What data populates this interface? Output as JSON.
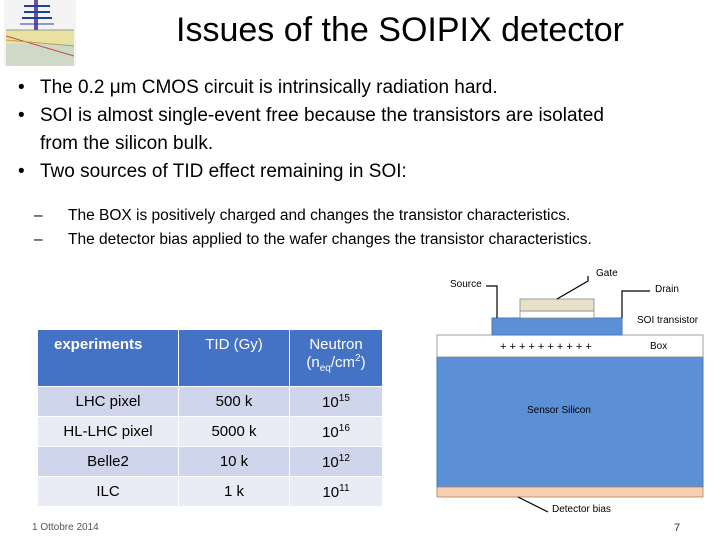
{
  "slide": {
    "title": "Issues of the SOIPIX detector",
    "bullets": [
      "The 0.2 μm CMOS circuit is intrinsically radiation hard.",
      "SOI is almost single-event free because the transistors are isolated",
      "from the silicon bulk.",
      "Two sources of TID effect remaining in SOI:"
    ],
    "bullet_marker": "•",
    "sub_marker": "–",
    "sub_bullets": [
      "The BOX is positively charged and changes the transistor characteristics.",
      "The detector bias applied to the wafer changes the transistor characteristics."
    ]
  },
  "table": {
    "headers": {
      "experiments": "experiments",
      "tid": "TID (Gy)",
      "neutron_line1": "Neutron",
      "neutron_n": "(n",
      "neutron_sub": "eq",
      "neutron_unit": "/cm",
      "neutron_sup": "2",
      "neutron_close": ")"
    },
    "rows": [
      {
        "experiment": "LHC pixel",
        "tid": "500 k",
        "base": "10",
        "exp": "15"
      },
      {
        "experiment": "HL-LHC pixel",
        "tid": "5000 k",
        "base": "10",
        "exp": "16"
      },
      {
        "experiment": "Belle2",
        "tid": "10 k",
        "base": "10",
        "exp": "12"
      },
      {
        "experiment": "ILC",
        "tid": "1 k",
        "base": "10",
        "exp": "11"
      }
    ]
  },
  "diagram": {
    "labels": {
      "gate": "Gate",
      "source": "Source",
      "drain": "Drain",
      "soi_transistor": "SOI transistor",
      "box": "Box",
      "box_charges": "+ + + + + + + + + +",
      "sensor_silicon": "Sensor Silicon",
      "detector_bias": "Detector bias"
    },
    "colors": {
      "silicon": "#5b8fd6",
      "soi_layer": "#5b8fd6",
      "gate": "#e8e0c8",
      "box": "#ffffff",
      "bias_contact": "#f7cfb0"
    }
  },
  "footer": {
    "date": "1 Ottobre 2014",
    "page": "7"
  },
  "colors": {
    "table_header": "#4472c4",
    "table_row_odd": "#cfd5ea",
    "table_row_even": "#e9ebf5"
  }
}
